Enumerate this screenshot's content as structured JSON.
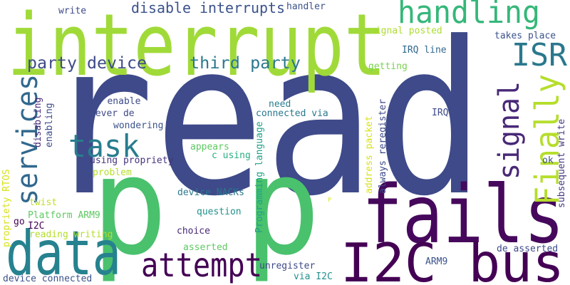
{
  "words": [
    "read",
    "interrupt",
    "p p",
    "fails",
    "I2C bus",
    "data",
    "attempt",
    "handling",
    "ISR",
    "services",
    "task",
    "signal",
    "Finally",
    "third party",
    "party device",
    "disable interrupts",
    "write",
    "handler",
    "signal posted",
    "takes place",
    "IRQ line",
    "getting",
    "re enable",
    "never de",
    "wondering",
    "need",
    "connected via",
    "IRQ",
    "appears",
    "c using",
    "using propriety",
    "problem",
    "ok",
    "device NACKs",
    "twist",
    "Platform ARM9",
    "question",
    "go",
    "I2C",
    "reading writing",
    "choice",
    "asserted",
    "de asserted",
    "ARM9",
    "unregister",
    "device connected",
    "via I2C",
    "P",
    "disabling",
    "enabling",
    "propriety RTOS",
    "Programming language",
    "address packet",
    "always reregister",
    "subsequent write"
  ]
}
